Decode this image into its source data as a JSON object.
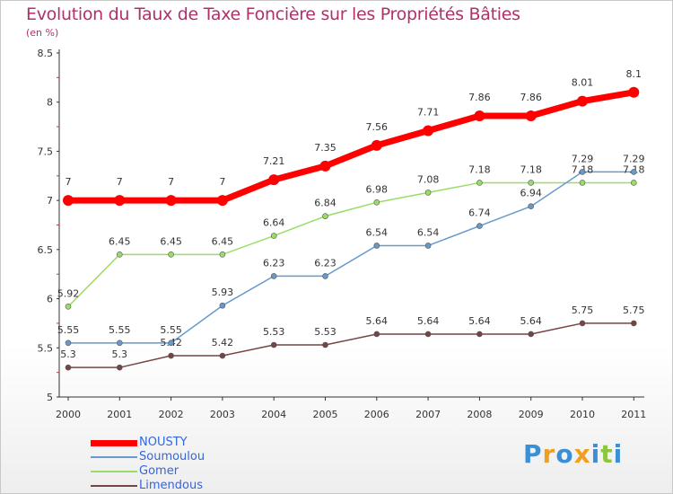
{
  "title": "Evolution du Taux de Taxe Foncière sur les Propriétés Bâties",
  "unit_label": "(en %)",
  "logo": {
    "letters": [
      {
        "ch": "P",
        "color": "#3a8fd6"
      },
      {
        "ch": "r",
        "color": "#f0a020"
      },
      {
        "ch": "o",
        "color": "#3a8fd6"
      },
      {
        "ch": "x",
        "color": "#f0a020"
      },
      {
        "ch": "i",
        "color": "#3a8fd6"
      },
      {
        "ch": "t",
        "color": "#8cc63f"
      },
      {
        "ch": "i",
        "color": "#3a8fd6"
      }
    ]
  },
  "chart_data": {
    "type": "line",
    "title": "Evolution du Taux de Taxe Foncière sur les Propriétés Bâties",
    "ylabel": "(en %)",
    "xlabel": "",
    "x": [
      "2000",
      "2001",
      "2002",
      "2003",
      "2004",
      "2005",
      "2006",
      "2007",
      "2008",
      "2009",
      "2010",
      "2011"
    ],
    "ylim": [
      5,
      8.5
    ],
    "yticks": [
      "5",
      "5.5",
      "6",
      "6.5",
      "7",
      "7.5",
      "8",
      "8.5"
    ],
    "grid": false,
    "legend_position": "bottom-left",
    "series": [
      {
        "name": "NOUSTY",
        "color": "#ff0000",
        "values": [
          7,
          7,
          7,
          7,
          7.21,
          7.35,
          7.56,
          7.71,
          7.86,
          7.86,
          8.01,
          8.1
        ],
        "labels": [
          "7",
          "7",
          "7",
          "7",
          "7.21",
          "7.35",
          "7.56",
          "7.71",
          "7.86",
          "7.86",
          "8.01",
          "8.1"
        ]
      },
      {
        "name": "Soumoulou",
        "color": "#6699cc",
        "values": [
          5.55,
          5.55,
          5.55,
          5.93,
          6.23,
          6.23,
          6.54,
          6.54,
          6.74,
          6.94,
          7.29,
          7.29
        ],
        "labels": [
          "5.55",
          "5.55",
          "5.55",
          "5.93",
          "6.23",
          "6.23",
          "6.54",
          "6.54",
          "6.74",
          "6.94",
          "7.29",
          "7.29"
        ]
      },
      {
        "name": "Gomer",
        "color": "#99dd66",
        "values": [
          5.92,
          6.45,
          6.45,
          6.45,
          6.64,
          6.84,
          6.98,
          7.08,
          7.18,
          7.18,
          7.18,
          7.18
        ],
        "labels": [
          "5.92",
          "6.45",
          "6.45",
          "6.45",
          "6.64",
          "6.84",
          "6.98",
          "7.08",
          "7.18",
          "7.18",
          "7.18",
          "7.18"
        ]
      },
      {
        "name": "Limendous",
        "color": "#774444",
        "values": [
          5.3,
          5.3,
          5.42,
          5.42,
          5.53,
          5.53,
          5.64,
          5.64,
          5.64,
          5.64,
          5.75,
          5.75
        ],
        "labels": [
          "5.3",
          "5.3",
          "5.42",
          "5.42",
          "5.53",
          "5.53",
          "5.64",
          "5.64",
          "5.64",
          "5.64",
          "5.75",
          "5.75"
        ]
      }
    ]
  }
}
